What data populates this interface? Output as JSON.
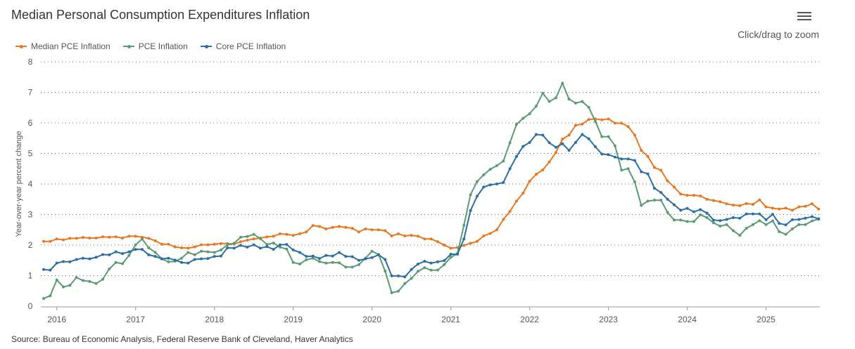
{
  "header": {
    "title": "Median Personal Consumption Expenditures Inflation",
    "zoom_hint": "Click/drag to zoom",
    "menu_icon": "hamburger-menu-icon"
  },
  "source": "Source: Bureau of Economic Analysis, Federal Reserve Bank of Cleveland, Haver Analytics",
  "chart_data": {
    "type": "line",
    "title": "Median Personal Consumption Expenditures Inflation",
    "ylabel": "Year-over-year percent change",
    "xlabel": "",
    "ylim": [
      0,
      8
    ],
    "yticks": [
      "0",
      "1",
      "2",
      "3",
      "4",
      "5",
      "6",
      "7",
      "8"
    ],
    "xticks": [
      "2016",
      "2017",
      "2018",
      "2019",
      "2020",
      "2021",
      "2022",
      "2023",
      "2024",
      "2025"
    ],
    "grid": "horizontal dotted",
    "legend": "top-left",
    "x": [
      "2015-11",
      "2015-12",
      "2016-01",
      "2016-02",
      "2016-03",
      "2016-04",
      "2016-05",
      "2016-06",
      "2016-07",
      "2016-08",
      "2016-09",
      "2016-10",
      "2016-11",
      "2016-12",
      "2017-01",
      "2017-02",
      "2017-03",
      "2017-04",
      "2017-05",
      "2017-06",
      "2017-07",
      "2017-08",
      "2017-09",
      "2017-10",
      "2017-11",
      "2017-12",
      "2018-01",
      "2018-02",
      "2018-03",
      "2018-04",
      "2018-05",
      "2018-06",
      "2018-07",
      "2018-08",
      "2018-09",
      "2018-10",
      "2018-11",
      "2018-12",
      "2019-01",
      "2019-02",
      "2019-03",
      "2019-04",
      "2019-05",
      "2019-06",
      "2019-07",
      "2019-08",
      "2019-09",
      "2019-10",
      "2019-11",
      "2019-12",
      "2020-01",
      "2020-02",
      "2020-03",
      "2020-04",
      "2020-05",
      "2020-06",
      "2020-07",
      "2020-08",
      "2020-09",
      "2020-10",
      "2020-11",
      "2020-12",
      "2021-01",
      "2021-02",
      "2021-03",
      "2021-04",
      "2021-05",
      "2021-06",
      "2021-07",
      "2021-08",
      "2021-09",
      "2021-10",
      "2021-11",
      "2021-12",
      "2022-01",
      "2022-02",
      "2022-03",
      "2022-04",
      "2022-05",
      "2022-06",
      "2022-07",
      "2022-08",
      "2022-09",
      "2022-10",
      "2022-11",
      "2022-12",
      "2023-01",
      "2023-02",
      "2023-03",
      "2023-04",
      "2023-05",
      "2023-06",
      "2023-07",
      "2023-08",
      "2023-09",
      "2023-10",
      "2023-11",
      "2023-12",
      "2024-01",
      "2024-02",
      "2024-03",
      "2024-04",
      "2024-05",
      "2024-06",
      "2024-07",
      "2024-08",
      "2024-09",
      "2024-10",
      "2024-11",
      "2024-12",
      "2025-01",
      "2025-02",
      "2025-03",
      "2025-04",
      "2025-05",
      "2025-06",
      "2025-07",
      "2025-08",
      "2025-09"
    ],
    "series": [
      {
        "name": "Median PCE Inflation",
        "color": "#e87722",
        "values": [
          2.12,
          2.12,
          2.2,
          2.17,
          2.22,
          2.22,
          2.25,
          2.23,
          2.23,
          2.27,
          2.26,
          2.27,
          2.23,
          2.29,
          2.29,
          2.26,
          2.22,
          2.14,
          2.03,
          2.03,
          1.94,
          1.91,
          1.9,
          1.94,
          2.01,
          2.01,
          2.03,
          2.05,
          2.05,
          2.03,
          2.11,
          2.16,
          2.2,
          2.23,
          2.27,
          2.29,
          2.37,
          2.35,
          2.32,
          2.37,
          2.43,
          2.64,
          2.61,
          2.53,
          2.58,
          2.61,
          2.58,
          2.55,
          2.43,
          2.53,
          2.5,
          2.5,
          2.47,
          2.3,
          2.37,
          2.3,
          2.32,
          2.29,
          2.2,
          2.2,
          2.11,
          2.0,
          1.9,
          1.92,
          1.99,
          2.06,
          2.12,
          2.3,
          2.38,
          2.5,
          2.84,
          3.1,
          3.44,
          3.7,
          4.09,
          4.32,
          4.46,
          4.72,
          5.03,
          5.47,
          5.6,
          5.92,
          5.96,
          6.11,
          6.13,
          6.1,
          6.13,
          5.99,
          5.99,
          5.88,
          5.6,
          5.1,
          4.9,
          4.54,
          4.45,
          4.1,
          3.9,
          3.67,
          3.63,
          3.63,
          3.61,
          3.5,
          3.46,
          3.42,
          3.35,
          3.31,
          3.29,
          3.36,
          3.33,
          3.48,
          3.25,
          3.21,
          3.18,
          3.21,
          3.14,
          3.25,
          3.27,
          3.35,
          3.18
        ]
      },
      {
        "name": "PCE Inflation",
        "color": "#5b9a72",
        "values": [
          0.25,
          0.34,
          0.86,
          0.63,
          0.68,
          0.94,
          0.84,
          0.81,
          0.74,
          0.88,
          1.22,
          1.43,
          1.39,
          1.66,
          2.01,
          2.2,
          1.91,
          1.76,
          1.55,
          1.45,
          1.47,
          1.57,
          1.76,
          1.68,
          1.8,
          1.78,
          1.76,
          1.84,
          2.01,
          2.06,
          2.26,
          2.28,
          2.35,
          2.21,
          2.02,
          2.07,
          1.93,
          1.87,
          1.43,
          1.38,
          1.52,
          1.57,
          1.46,
          1.41,
          1.43,
          1.42,
          1.28,
          1.28,
          1.36,
          1.57,
          1.8,
          1.69,
          1.15,
          0.44,
          0.49,
          0.74,
          0.91,
          1.14,
          1.26,
          1.18,
          1.18,
          1.36,
          1.6,
          1.72,
          2.65,
          3.65,
          4.08,
          4.3,
          4.48,
          4.6,
          4.75,
          5.35,
          5.95,
          6.15,
          6.3,
          6.55,
          6.97,
          6.7,
          6.82,
          7.3,
          6.78,
          6.65,
          6.7,
          6.51,
          6.05,
          5.55,
          5.55,
          5.25,
          4.45,
          4.5,
          4.07,
          3.3,
          3.44,
          3.47,
          3.47,
          3.07,
          2.82,
          2.82,
          2.77,
          2.77,
          2.99,
          2.9,
          2.73,
          2.62,
          2.67,
          2.47,
          2.32,
          2.55,
          2.67,
          2.8,
          2.67,
          2.79,
          2.44,
          2.35,
          2.53,
          2.67,
          2.67,
          2.79,
          2.85
        ]
      },
      {
        "name": "Core PCE Inflation",
        "color": "#2b6ea6",
        "values": [
          1.2,
          1.18,
          1.41,
          1.46,
          1.45,
          1.53,
          1.57,
          1.55,
          1.6,
          1.69,
          1.68,
          1.78,
          1.72,
          1.78,
          1.86,
          1.86,
          1.68,
          1.63,
          1.55,
          1.57,
          1.51,
          1.43,
          1.41,
          1.53,
          1.55,
          1.56,
          1.63,
          1.64,
          1.91,
          1.9,
          1.99,
          1.93,
          2.01,
          1.9,
          1.95,
          1.86,
          2.01,
          2.02,
          1.84,
          1.76,
          1.63,
          1.64,
          1.56,
          1.66,
          1.64,
          1.76,
          1.63,
          1.62,
          1.5,
          1.55,
          1.59,
          1.68,
          1.53,
          0.99,
          0.99,
          0.96,
          1.2,
          1.38,
          1.47,
          1.41,
          1.45,
          1.49,
          1.7,
          1.7,
          2.2,
          3.13,
          3.6,
          3.9,
          3.97,
          4.0,
          4.05,
          4.5,
          4.9,
          5.23,
          5.36,
          5.62,
          5.6,
          5.35,
          5.2,
          5.32,
          5.1,
          5.36,
          5.62,
          5.48,
          5.22,
          4.98,
          4.96,
          4.88,
          4.82,
          4.82,
          4.77,
          4.4,
          4.33,
          3.86,
          3.72,
          3.5,
          3.32,
          3.14,
          3.2,
          3.09,
          3.16,
          3.05,
          2.82,
          2.8,
          2.84,
          2.9,
          2.88,
          3.02,
          3.02,
          3.02,
          2.83,
          3.01,
          2.71,
          2.66,
          2.83,
          2.84,
          2.88,
          2.93,
          2.86
        ]
      }
    ]
  }
}
